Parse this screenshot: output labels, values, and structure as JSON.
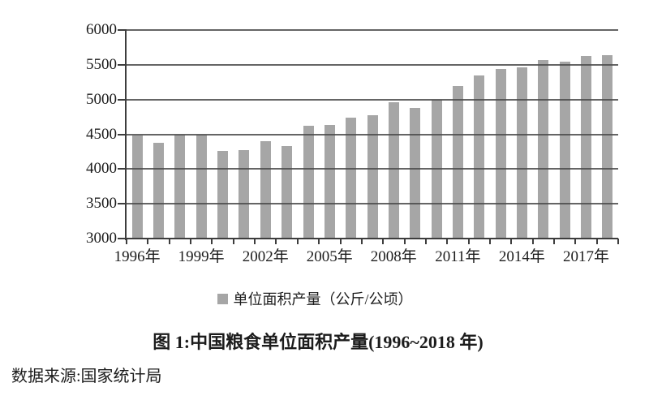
{
  "chart_data": {
    "type": "bar",
    "title": "图 1:中国粮食单位面积产量(1996~2018 年)",
    "legend_label": "单位面积产量（公斤/公顷）",
    "source": "数据来源:国家统计局",
    "categories": [
      1996,
      1997,
      1998,
      1999,
      2000,
      2001,
      2002,
      2003,
      2004,
      2005,
      2006,
      2007,
      2008,
      2009,
      2010,
      2011,
      2012,
      2013,
      2014,
      2015,
      2016,
      2017,
      2018
    ],
    "values": [
      4480,
      4380,
      4500,
      4490,
      4260,
      4270,
      4400,
      4330,
      4620,
      4640,
      4740,
      4770,
      4960,
      4880,
      5000,
      5200,
      5350,
      5440,
      5460,
      5570,
      5550,
      5630,
      5640
    ],
    "ylim": [
      3000,
      6000
    ],
    "ytick_values": [
      6000,
      5500,
      5000,
      4500,
      4000,
      3500,
      3000
    ],
    "xtick_labels": [
      "1996年",
      "1999年",
      "2002年",
      "2005年",
      "2008年",
      "2011年",
      "2014年",
      "2017年"
    ],
    "grid": true,
    "legend_position": "bottom",
    "bar_color": "#a6a6a6",
    "gridline_color": "#4a4a4a",
    "axis_color": "#3d3d3d"
  }
}
